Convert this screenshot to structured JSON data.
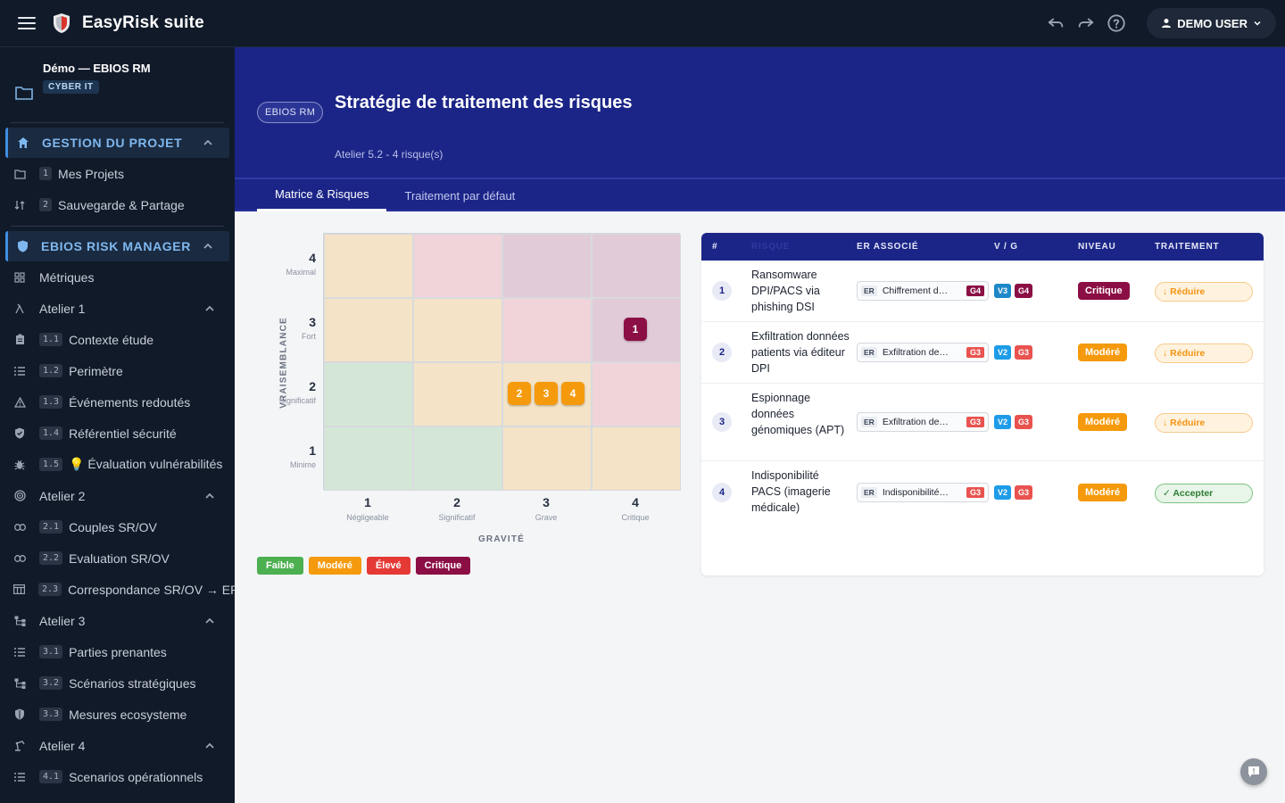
{
  "app": {
    "title": "EasyRisk suite",
    "user_label": "DEMO USER"
  },
  "project": {
    "name": "Démo — EBIOS RM",
    "tag": "CYBER IT"
  },
  "sidebar": {
    "sections": [
      {
        "label": "GESTION DU PROJET",
        "icon": "home-icon"
      },
      {
        "label": "EBIOS RISK MANAGER",
        "icon": "shield-icon"
      }
    ],
    "project_items": [
      {
        "num": "1",
        "label": "Mes Projets",
        "icon": "folder-icon"
      },
      {
        "num": "2",
        "label": "Sauvegarde & Partage",
        "icon": "sort-icon"
      }
    ],
    "ebios_items": [
      {
        "label": "Métriques",
        "icon": "dashboard-icon"
      },
      {
        "label": "Atelier 1",
        "icon": "lambda-icon"
      },
      {
        "num": "1.1",
        "label": "Contexte étude",
        "icon": "clipboard-icon"
      },
      {
        "num": "1.2",
        "label": "Perimètre",
        "icon": "list-icon"
      },
      {
        "num": "1.3",
        "label": "Événements redoutés",
        "icon": "warning-icon"
      },
      {
        "num": "1.4",
        "label": "Référentiel sécurité",
        "icon": "shield-check-icon"
      },
      {
        "num": "1.5",
        "label": "💡 Évaluation vulnérabilités",
        "icon": "bug-icon"
      },
      {
        "label": "Atelier 2",
        "icon": "target-icon"
      },
      {
        "num": "2.1",
        "label": "Couples SR/OV",
        "icon": "link-icon"
      },
      {
        "num": "2.2",
        "label": "Evaluation SR/OV",
        "icon": "link-icon"
      },
      {
        "num": "2.3",
        "label": "Correspondance SR/OV → ER",
        "icon": "table-icon"
      },
      {
        "label": "Atelier 3",
        "icon": "hierarchy-icon"
      },
      {
        "num": "3.1",
        "label": "Parties prenantes",
        "icon": "list-icon"
      },
      {
        "num": "3.2",
        "label": "Scénarios stratégiques",
        "icon": "hierarchy-icon"
      },
      {
        "num": "3.3",
        "label": "Mesures ecosysteme",
        "icon": "shield-check-icon"
      },
      {
        "label": "Atelier 4",
        "icon": "robot-arm-icon"
      },
      {
        "num": "4.1",
        "label": "Scenarios opérationnels",
        "icon": "list-icon"
      }
    ]
  },
  "page": {
    "badge": "EBIOS RM",
    "title": "Stratégie de traitement des risques",
    "subtitle": "Atelier 5.2 - 4 risque(s)",
    "tabs": [
      "Matrice & Risques",
      "Traitement par défaut"
    ]
  },
  "matrix": {
    "y_title": "VRAISEMBLANCE",
    "x_title": "GRAVITÉ",
    "y_levels": [
      {
        "n": "4",
        "t": "Maximal"
      },
      {
        "n": "3",
        "t": "Fort"
      },
      {
        "n": "2",
        "t": "Significatif"
      },
      {
        "n": "1",
        "t": "Minime"
      }
    ],
    "x_levels": [
      {
        "n": "1",
        "t": "Négligeable"
      },
      {
        "n": "2",
        "t": "Significatif"
      },
      {
        "n": "3",
        "t": "Grave"
      },
      {
        "n": "4",
        "t": "Critique"
      }
    ],
    "markers": [
      {
        "label": "1",
        "v": 3,
        "g": 4,
        "level": "Critique"
      },
      {
        "label": "2",
        "v": 2,
        "g": 3,
        "level": "Modéré"
      },
      {
        "label": "3",
        "v": 2,
        "g": 3,
        "level": "Modéré"
      },
      {
        "label": "4",
        "v": 2,
        "g": 3,
        "level": "Modéré"
      }
    ],
    "legend": [
      "Faible",
      "Modéré",
      "Élevé",
      "Critique"
    ]
  },
  "colors": {
    "faible": "#4caf50",
    "modere": "#f59a0c",
    "eleve": "#e53935",
    "critique": "#8b0f45",
    "v_badge": "#1e9ce8",
    "g3_badge": "#e9534f",
    "g4_badge": "#8b0f45"
  },
  "table": {
    "headers": [
      "#",
      "RISQUE",
      "ER ASSOCIÉ",
      "V / G",
      "NIVEAU",
      "TRAITEMENT"
    ],
    "rows": [
      {
        "num": "1",
        "name": "Ransomware DPI/PACS via phishing DSI",
        "er_label": "ER",
        "er_text": "Chiffrement d…",
        "er_g": "G4",
        "v": "V3",
        "g": "G4",
        "niveau": "Critique",
        "traitement": "↓ Réduire"
      },
      {
        "num": "2",
        "name": "Exfiltration données patients via éditeur DPI",
        "er_label": "ER",
        "er_text": "Exfiltration de…",
        "er_g": "G3",
        "v": "V2",
        "g": "G3",
        "niveau": "Modéré",
        "traitement": "↓ Réduire"
      },
      {
        "num": "3",
        "name": "Espionnage données génomiques (APT)",
        "er_label": "ER",
        "er_text": "Exfiltration de…",
        "er_g": "G3",
        "v": "V2",
        "g": "G3",
        "niveau": "Modéré",
        "traitement": "↓ Réduire"
      },
      {
        "num": "4",
        "name": "Indisponibilité PACS (imagerie médicale)",
        "er_label": "ER",
        "er_text": "Indisponibilité…",
        "er_g": "G3",
        "v": "V2",
        "g": "G3",
        "niveau": "Modéré",
        "traitement": "✓ Accepter"
      }
    ]
  }
}
